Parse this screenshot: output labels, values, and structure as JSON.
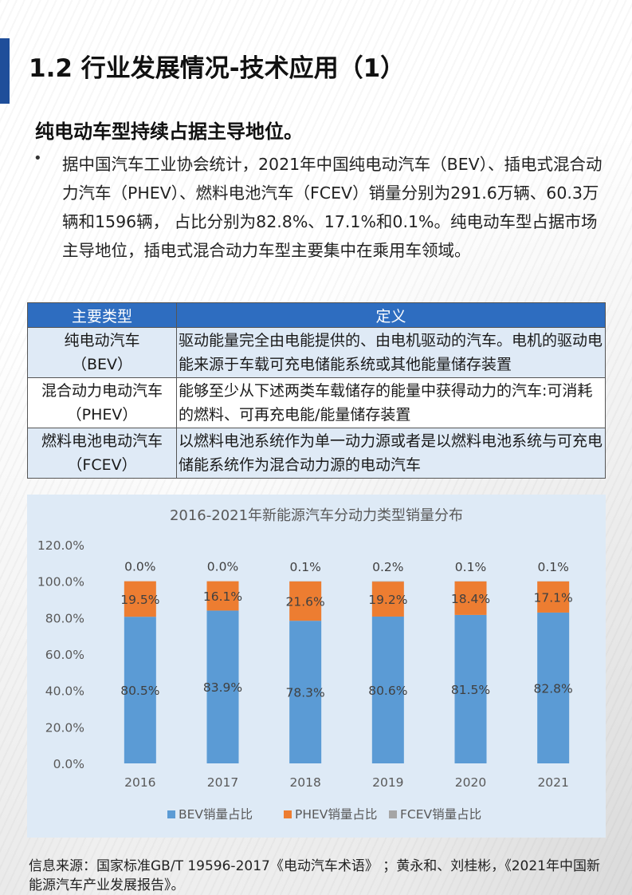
{
  "title": "1.2 行业发展情况-技术应用（1）",
  "subheading": "纯电动车型持续占据主导地位。",
  "bullet": {
    "dot": "•",
    "text": "据中国汽车工业协会统计，2021年中国纯电动汽车（BEV）、插电式混合动力汽车（PHEV）、燃料电池汽车（FCEV）销量分别为291.6万辆、60.3万辆和1596辆， 占比分别为82.8%、17.1%和0.1%。纯电动车型占据市场主导地位，插电式混合动力车型主要集中在乘用车领域。"
  },
  "table": {
    "headers": [
      "主要类型",
      "定义"
    ],
    "rows": [
      {
        "type_line1": "纯电动汽车",
        "type_line2": "（BEV）",
        "definition": "驱动能量完全由电能提供的、由电机驱动的汽车。电机的驱动电能来源于车载可充电储能系统或其他能量储存装置"
      },
      {
        "type_line1": "混合动力电动汽车",
        "type_line2": "（PHEV）",
        "definition": "能够至少从下述两类车载储存的能量中获得动力的汽车:可消耗的燃料、可再充电能/能量储存装置"
      },
      {
        "type_line1": "燃料电池电动汽车",
        "type_line2": "（FCEV）",
        "definition": "以燃料电池系统作为单一动力源或者是以燃料电池系统与可充电储能系统作为混合动力源的电动汽车"
      }
    ]
  },
  "chart_data": {
    "type": "bar",
    "stacked": true,
    "title": "2016-2021年新能源汽车分动力类型销量分布",
    "categories": [
      "2016",
      "2017",
      "2018",
      "2019",
      "2020",
      "2021"
    ],
    "series": [
      {
        "name": "BEV销量占比",
        "color": "#5b9bd5",
        "values": [
          80.5,
          83.9,
          78.3,
          80.6,
          81.5,
          82.8
        ],
        "labels": [
          "80.5%",
          "83.9%",
          "78.3%",
          "80.6%",
          "81.5%",
          "82.8%"
        ]
      },
      {
        "name": "PHEV销量占比",
        "color": "#ed7d31",
        "values": [
          19.5,
          16.1,
          21.6,
          19.2,
          18.4,
          17.1
        ],
        "labels": [
          "19.5%",
          "16.1%",
          "21.6%",
          "19.2%",
          "18.4%",
          "17.1%"
        ]
      },
      {
        "name": "FCEV销量占比",
        "color": "#a5a5a5",
        "values": [
          0.0,
          0.0,
          0.1,
          0.2,
          0.1,
          0.1
        ],
        "labels": [
          "0.0%",
          "0.0%",
          "0.1%",
          "0.2%",
          "0.1%",
          "0.1%"
        ]
      }
    ],
    "yticks": [
      "0.0%",
      "20.0%",
      "40.0%",
      "60.0%",
      "80.0%",
      "100.0%",
      "120.0%"
    ],
    "ylim": [
      0,
      120
    ],
    "grid": false,
    "legend": "bottom",
    "background": "#deeaf6"
  },
  "source": "信息来源：国家标准GB/T 19596-2017《电动汽车术语》 ；黄永和、刘桂彬，《2021年中国新能源汽车产业发展报告》。",
  "colors": {
    "accent": "#1f4e9a",
    "table_header": "#2e6dc0",
    "table_alt": "#dfeaf6"
  }
}
